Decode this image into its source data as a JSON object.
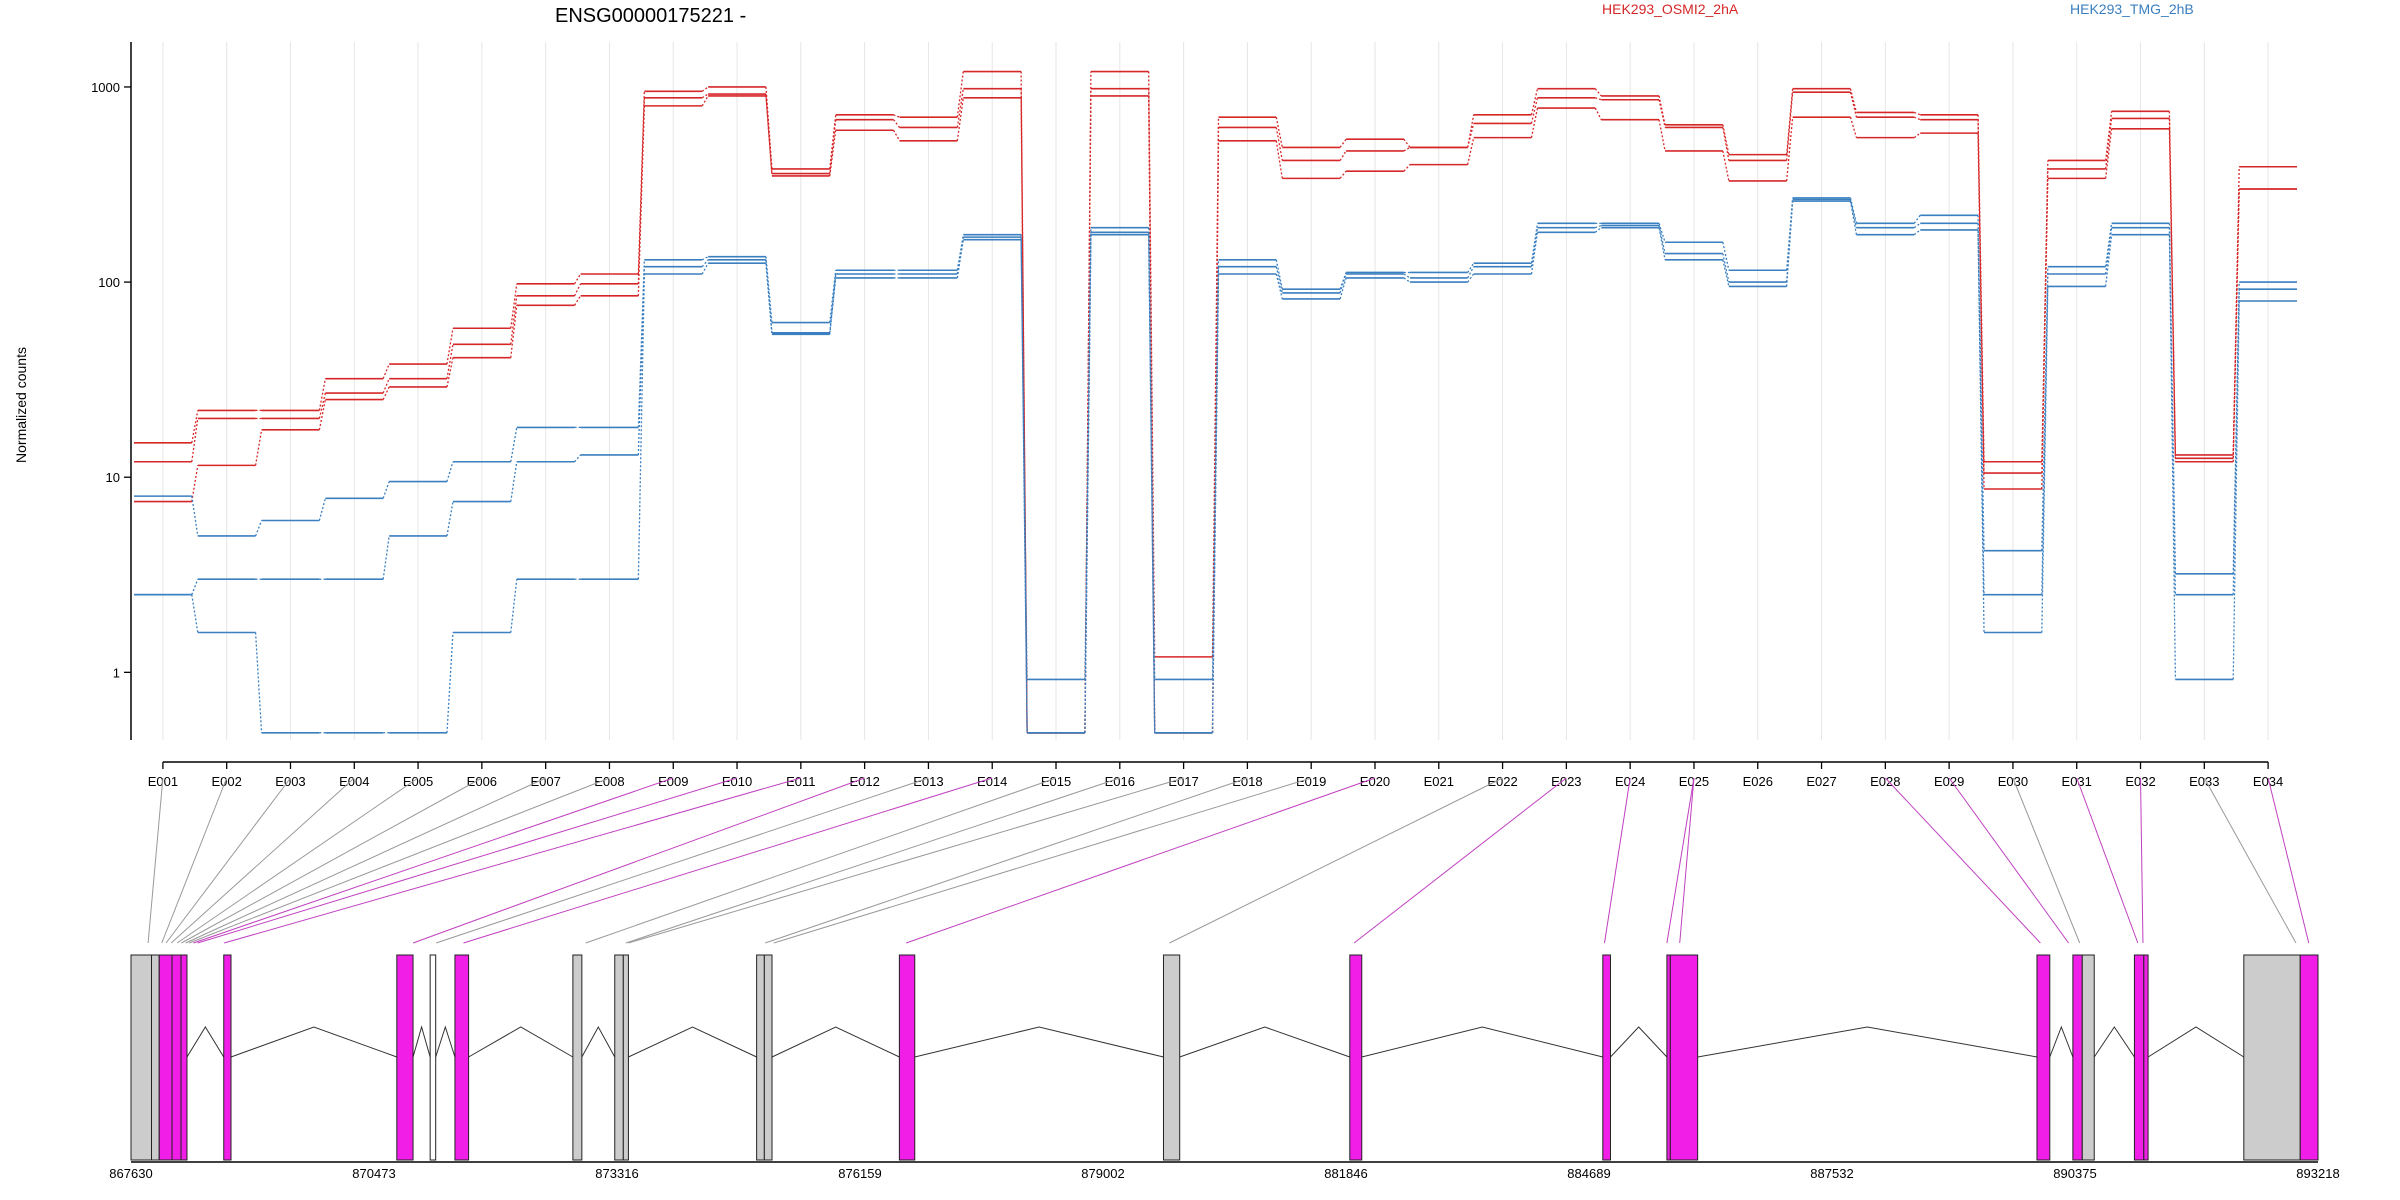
{
  "chart_data": {
    "type": "line",
    "title": "ENSG00000175221 -",
    "ylabel": "Normalized counts",
    "yscale": "log",
    "ylim": [
      0.45,
      1700
    ],
    "yticks": [
      {
        "value": 1,
        "label": "1"
      },
      {
        "value": 10,
        "label": "10"
      },
      {
        "value": 100,
        "label": "100"
      },
      {
        "value": 1000,
        "label": "1000"
      }
    ],
    "categories": [
      "E001",
      "E002",
      "E003",
      "E004",
      "E005",
      "E006",
      "E007",
      "E008",
      "E009",
      "E010",
      "E011",
      "E012",
      "E013",
      "E014",
      "E015",
      "E016",
      "E017",
      "E018",
      "E019",
      "E020",
      "E021",
      "E022",
      "E023",
      "E024",
      "E025",
      "E026",
      "E027",
      "E028",
      "E029",
      "E030",
      "E031",
      "E032",
      "E033",
      "E034"
    ],
    "legend": [
      {
        "label": "HEK293_OSMI2_2hA",
        "color": "#d62728"
      },
      {
        "label": "HEK293_TMG_2hB",
        "color": "#3a7fbf"
      }
    ],
    "series": [
      {
        "group": "HEK293_OSMI2_2hA",
        "values": [
          15,
          22,
          22,
          32,
          38,
          58,
          98,
          110,
          950,
          1000,
          380,
          720,
          700,
          1200,
          0.49,
          1200,
          1.2,
          700,
          490,
          540,
          490,
          720,
          980,
          900,
          640,
          450,
          980,
          740,
          720,
          12,
          420,
          750,
          13,
          390
        ]
      },
      {
        "group": "HEK293_OSMI2_2hA",
        "values": [
          12,
          20,
          20,
          27,
          32,
          48,
          85,
          98,
          880,
          920,
          360,
          680,
          620,
          980,
          0.49,
          980,
          0.49,
          620,
          420,
          470,
          490,
          650,
          880,
          860,
          620,
          420,
          940,
          700,
          680,
          10.5,
          380,
          690,
          12.5,
          300
        ]
      },
      {
        "group": "HEK293_OSMI2_2hA",
        "values": [
          7.5,
          11.5,
          17.5,
          25,
          29,
          41,
          76,
          85,
          800,
          900,
          350,
          600,
          530,
          880,
          0.49,
          900,
          0.49,
          530,
          340,
          370,
          400,
          550,
          780,
          680,
          470,
          330,
          700,
          550,
          580,
          8.7,
          340,
          610,
          12,
          300
        ]
      },
      {
        "group": "HEK293_TMG_2hB",
        "values": [
          8,
          5,
          6,
          7.8,
          9.5,
          12,
          18,
          18,
          130,
          135,
          62,
          115,
          115,
          175,
          0.92,
          190,
          0.92,
          130,
          92,
          112,
          112,
          125,
          200,
          200,
          160,
          115,
          270,
          200,
          220,
          4.2,
          120,
          200,
          3.2,
          100
        ]
      },
      {
        "group": "HEK293_TMG_2hB",
        "values": [
          2.5,
          3,
          3,
          3,
          5,
          7.5,
          12,
          13,
          120,
          130,
          55,
          110,
          110,
          170,
          0.49,
          180,
          0.49,
          120,
          88,
          110,
          105,
          120,
          190,
          195,
          140,
          100,
          265,
          190,
          200,
          2.5,
          110,
          190,
          2.5,
          92
        ]
      },
      {
        "group": "HEK293_TMG_2hB",
        "values": [
          2.5,
          1.6,
          0.49,
          0.49,
          0.49,
          1.6,
          3,
          3,
          110,
          125,
          54,
          105,
          105,
          165,
          0.49,
          175,
          0.49,
          110,
          82,
          105,
          100,
          110,
          180,
          190,
          130,
          95,
          260,
          175,
          185,
          1.6,
          95,
          175,
          0.92,
          80
        ]
      }
    ],
    "genome_axis": {
      "range": [
        867630,
        893218
      ],
      "ticks": [
        "867630",
        "870473",
        "873316",
        "876159",
        "879002",
        "881846",
        "884689",
        "887532",
        "890375",
        "893218"
      ]
    },
    "gene_model": {
      "exons": [
        {
          "start": 867630,
          "end": 867870,
          "color": "#cccccc"
        },
        {
          "start": 867870,
          "end": 867960,
          "color": "#cccccc"
        },
        {
          "start": 867960,
          "end": 868110,
          "color": "#f01ee6"
        },
        {
          "start": 868110,
          "end": 868215,
          "color": "#f01ee6"
        },
        {
          "start": 868215,
          "end": 868285,
          "color": "#f01ee6"
        },
        {
          "start": 868715,
          "end": 868800,
          "color": "#f01ee6"
        },
        {
          "start": 870740,
          "end": 870930,
          "color": "#f01ee6"
        },
        {
          "start": 871130,
          "end": 871195,
          "color": "#ffffff"
        },
        {
          "start": 871420,
          "end": 871580,
          "color": "#f01ee6"
        },
        {
          "start": 872800,
          "end": 872905,
          "color": "#cccccc"
        },
        {
          "start": 873290,
          "end": 873390,
          "color": "#cccccc"
        },
        {
          "start": 873390,
          "end": 873450,
          "color": "#cccccc"
        },
        {
          "start": 874950,
          "end": 875040,
          "color": "#cccccc"
        },
        {
          "start": 875040,
          "end": 875130,
          "color": "#cccccc"
        },
        {
          "start": 876620,
          "end": 876800,
          "color": "#f01ee6"
        },
        {
          "start": 879710,
          "end": 879900,
          "color": "#cccccc"
        },
        {
          "start": 881890,
          "end": 882030,
          "color": "#f01ee6"
        },
        {
          "start": 884850,
          "end": 884940,
          "color": "#f01ee6"
        },
        {
          "start": 885600,
          "end": 885640,
          "color": "#f01ee6"
        },
        {
          "start": 885640,
          "end": 885960,
          "color": "#f01ee6"
        },
        {
          "start": 889930,
          "end": 890080,
          "color": "#f01ee6"
        },
        {
          "start": 890350,
          "end": 890460,
          "color": "#f01ee6"
        },
        {
          "start": 890460,
          "end": 890600,
          "color": "#cccccc"
        },
        {
          "start": 891070,
          "end": 891180,
          "color": "#f01ee6"
        },
        {
          "start": 891180,
          "end": 891230,
          "color": "#f01ee6"
        },
        {
          "start": 892350,
          "end": 893010,
          "color": "#cccccc"
        },
        {
          "start": 893010,
          "end": 893218,
          "color": "#f01ee6"
        }
      ],
      "connector_targets": [
        867830,
        867990,
        868040,
        868100,
        868170,
        868220,
        868270,
        868310,
        868360,
        868410,
        868720,
        870930,
        871200,
        871520,
        872950,
        873420,
        873450,
        875050,
        875150,
        876700,
        879780,
        881940,
        884870,
        885600,
        885750,
        889970,
        890300,
        890430,
        891110,
        891170,
        892960,
        893110
      ],
      "connector_colors": [
        "#999999",
        "#999999",
        "#999999",
        "#999999",
        "#999999",
        "#999999",
        "#999999",
        "#999999",
        "#c040c0",
        "#c040c0",
        "#c040c0",
        "#c040c0",
        "#999999",
        "#c040c0",
        "#999999",
        "#999999",
        "#999999",
        "#999999",
        "#999999",
        "#c040c0",
        "#999999",
        "#c040c0",
        "#c040c0",
        "#c040c0",
        "#c040c0",
        "#c040c0",
        "#c040c0",
        "#999999",
        "#c040c0",
        "#c040c0",
        "#999999",
        "#c040c0"
      ],
      "connector_bins": [
        "E001",
        "E002",
        "E003",
        "E004",
        "E005",
        "E006",
        "E007",
        "E008",
        "E009",
        "E010",
        "E011",
        "E012",
        "E013",
        "E014",
        "E015",
        "E016",
        "E017",
        "E018",
        "E019",
        "E020",
        "E022",
        "E023",
        "E024",
        "E025",
        "E025",
        "E028",
        "E029",
        "E030",
        "E031",
        "E032",
        "E033",
        "E034"
      ]
    }
  }
}
